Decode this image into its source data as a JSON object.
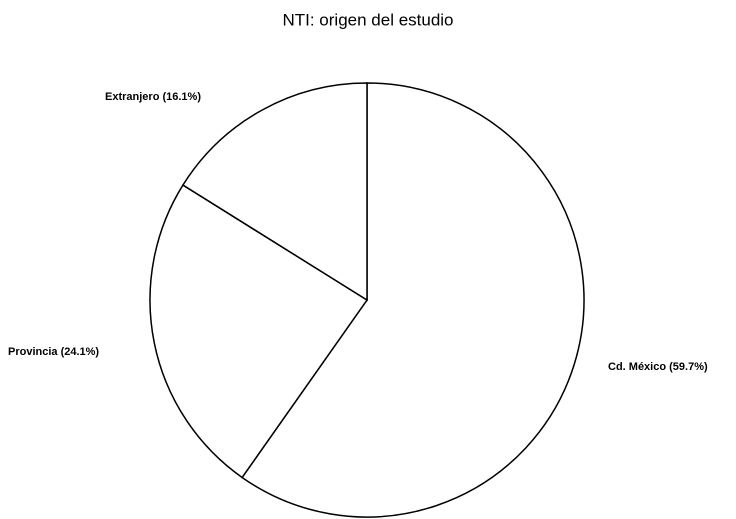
{
  "chart_data": {
    "type": "pie",
    "title": "NTI: origen del estudio",
    "values": [
      59.7,
      24.1,
      16.1
    ],
    "value_labels": [
      "Cd. México (59.7%)",
      "Provincia (24.1%)",
      "Extranjero (16.1%)"
    ],
    "colors": [
      "#ffffff",
      "#ffffff",
      "#ffffff"
    ]
  }
}
